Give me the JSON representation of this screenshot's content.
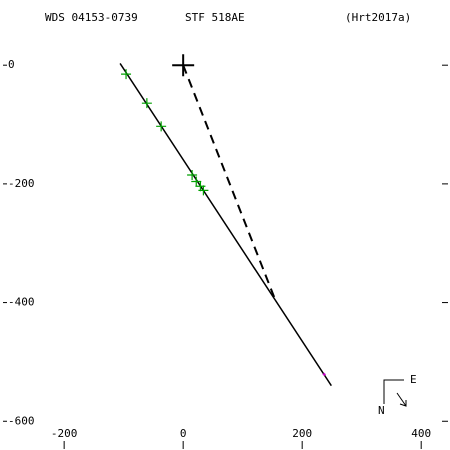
{
  "chart_data": {
    "type": "scatter",
    "title": "WDS 04153-0739",
    "subtitle": "STF 518AE",
    "reference": "(Hrt2017a)",
    "xlim": [
      -291,
      440
    ],
    "ylim": [
      -640,
      93
    ],
    "xticks": [
      -200,
      0,
      200,
      400
    ],
    "yticks": [
      0,
      -200,
      -400,
      -600
    ],
    "compass": [
      "E",
      "N"
    ],
    "series": [
      {
        "mode": "line",
        "color": "#000000",
        "x": [
          -106,
          249
        ],
        "values": [
          3,
          -540
        ]
      },
      {
        "mode": "line",
        "dash": true,
        "color": "#000000",
        "x": [
          0,
          153
        ],
        "values": [
          0,
          -391
        ]
      },
      {
        "mode": "marker",
        "size": 10,
        "color": "#00a000",
        "x": [
          -96,
          -61,
          -37,
          15,
          22,
          29,
          34
        ],
        "values": [
          -15,
          -64,
          -103,
          -185,
          -196,
          -204,
          -211
        ]
      },
      {
        "mode": "marker",
        "size": 3,
        "color": "#cc00cc",
        "x": [
          237
        ],
        "values": [
          -521
        ]
      },
      {
        "mode": "marker",
        "size": 22,
        "color": "#000000",
        "x": [
          0
        ],
        "values": [
          0
        ]
      }
    ]
  }
}
